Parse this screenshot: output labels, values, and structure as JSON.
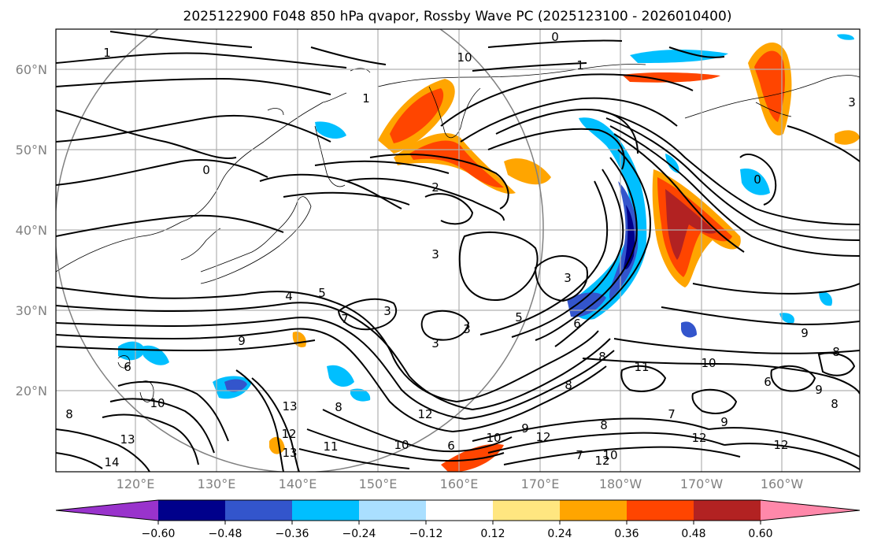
{
  "title": "2025122900 F048 850 hPa qvapor, Rossby Wave PC (2025123100 - 2026010400)",
  "lat_ticks": [
    "20°N",
    "30°N",
    "40°N",
    "50°N",
    "60°N"
  ],
  "lon_ticks": [
    "120°E",
    "130°E",
    "140°E",
    "150°E",
    "160°E",
    "170°E",
    "180°W",
    "170°W",
    "160°W"
  ],
  "colorbar": {
    "tick_labels": [
      "−0.60",
      "−0.48",
      "−0.36",
      "−0.24",
      "−0.12",
      "0.12",
      "0.24",
      "0.36",
      "0.48",
      "0.60"
    ],
    "bins": [
      "#9933cc",
      "#00008b",
      "#3355cc",
      "#00bfff",
      "#aadfff",
      "#ffffff",
      "#ffe680",
      "#ffa500",
      "#ff4500",
      "#b22222",
      "#ff88aa"
    ]
  },
  "contour_labels": [
    "0",
    "1",
    "2",
    "3",
    "4",
    "5",
    "6",
    "7",
    "8",
    "9",
    "10",
    "11",
    "12",
    "13",
    "14"
  ],
  "colors": {
    "negative": [
      "#00bfff",
      "#3355cc",
      "#00008b"
    ],
    "positive": [
      "#ffa500",
      "#ff4500",
      "#b22222"
    ]
  }
}
